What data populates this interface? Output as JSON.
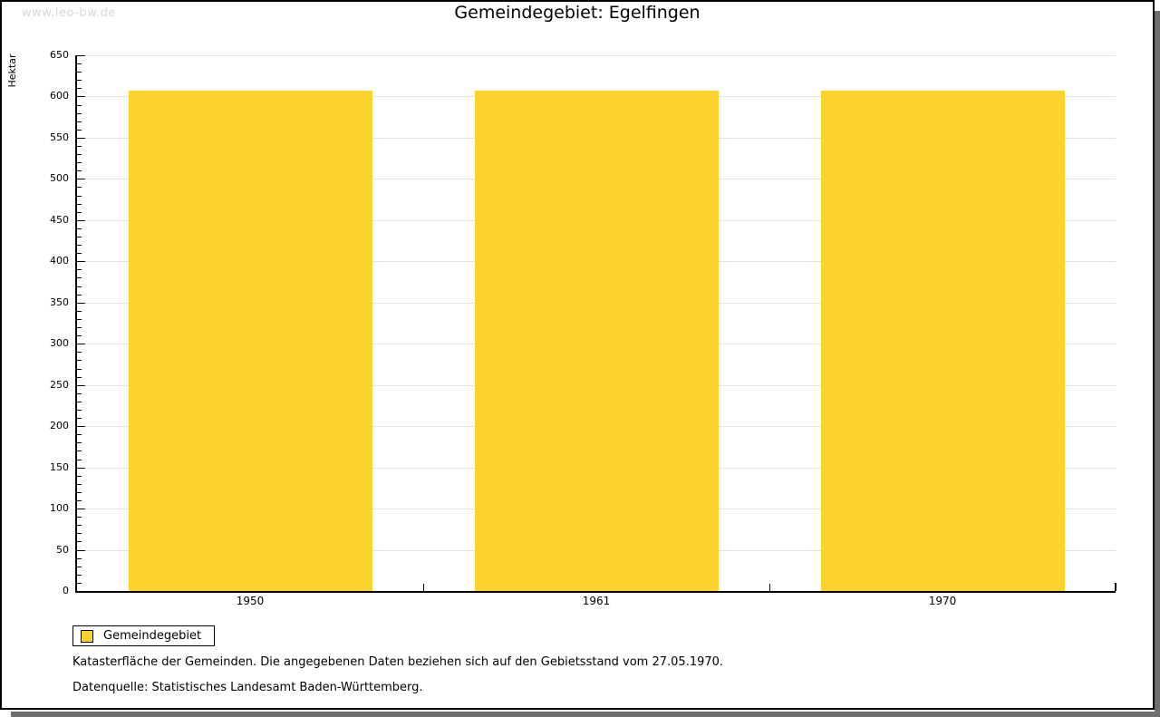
{
  "watermark": "www.leo-bw.de",
  "title": "Gemeindegebiet: Egelfingen",
  "chart_data": {
    "type": "bar",
    "title": "Gemeindegebiet: Egelfingen",
    "xlabel": "",
    "ylabel": "Hektar",
    "categories": [
      "1950",
      "1961",
      "1970"
    ],
    "series": [
      {
        "name": "Gemeindegebiet",
        "values": [
          607,
          607,
          607
        ]
      }
    ],
    "ylim": [
      0,
      650
    ],
    "ytick_major": 50,
    "ytick_minor": 10,
    "yticks": [
      0,
      50,
      100,
      150,
      200,
      250,
      300,
      350,
      400,
      450,
      500,
      550,
      600,
      650
    ],
    "grid": "horizontal-major",
    "bar_color": "#FCD32D",
    "axis_color": "#000000",
    "grid_color": "#e2e2e2",
    "legend_position": "bottom-left"
  },
  "legend": {
    "items": [
      {
        "label": "Gemeindegebiet",
        "color": "#FCD32D"
      }
    ]
  },
  "footnotes": [
    "Katasterfläche der Gemeinden. Die angegebenen Daten beziehen sich auf den Gebietsstand vom 27.05.1970.",
    "Datenquelle: Statistisches Landesamt Baden-Württemberg."
  ]
}
